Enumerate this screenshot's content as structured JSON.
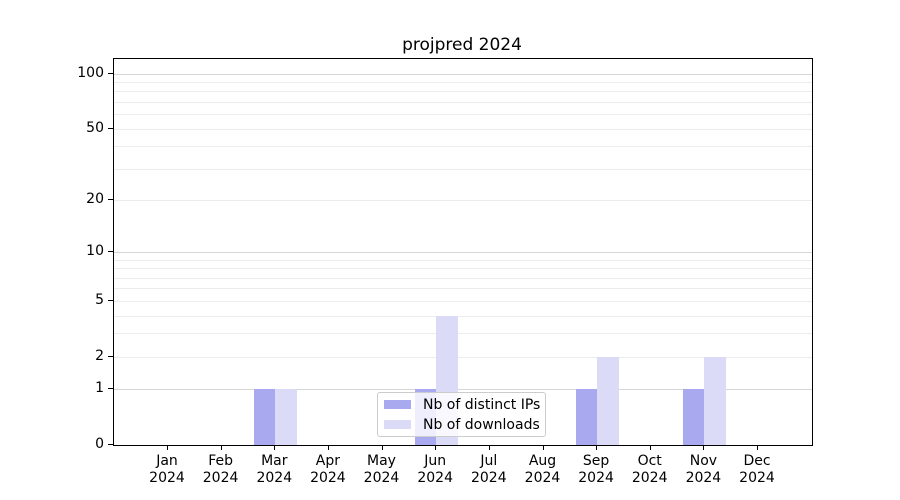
{
  "chart_data": {
    "type": "bar",
    "title": "projpred 2024",
    "categories": [
      {
        "month": "Jan",
        "year": "2024"
      },
      {
        "month": "Feb",
        "year": "2024"
      },
      {
        "month": "Mar",
        "year": "2024"
      },
      {
        "month": "Apr",
        "year": "2024"
      },
      {
        "month": "May",
        "year": "2024"
      },
      {
        "month": "Jun",
        "year": "2024"
      },
      {
        "month": "Jul",
        "year": "2024"
      },
      {
        "month": "Aug",
        "year": "2024"
      },
      {
        "month": "Sep",
        "year": "2024"
      },
      {
        "month": "Oct",
        "year": "2024"
      },
      {
        "month": "Nov",
        "year": "2024"
      },
      {
        "month": "Dec",
        "year": "2024"
      }
    ],
    "series": [
      {
        "name": "Nb of distinct IPs",
        "color": "#a9a9f0",
        "values": [
          0,
          0,
          1,
          0,
          0,
          1,
          0,
          0,
          1,
          0,
          1,
          0
        ]
      },
      {
        "name": "Nb of downloads",
        "color": "#dbdbf8",
        "values": [
          0,
          0,
          1,
          0,
          0,
          4,
          0,
          0,
          2,
          0,
          2,
          0
        ]
      }
    ],
    "yticks": [
      0,
      1,
      2,
      5,
      10,
      20,
      50,
      100
    ],
    "y_scale": "log1p",
    "ylim": [
      0,
      120
    ],
    "grid": "horizontal-minor-log",
    "grid_minor_color": "#ececec",
    "grid_major_color": "#d6d6d6",
    "legend_position": "bottom-center-inside",
    "xlabel": "",
    "ylabel": ""
  }
}
